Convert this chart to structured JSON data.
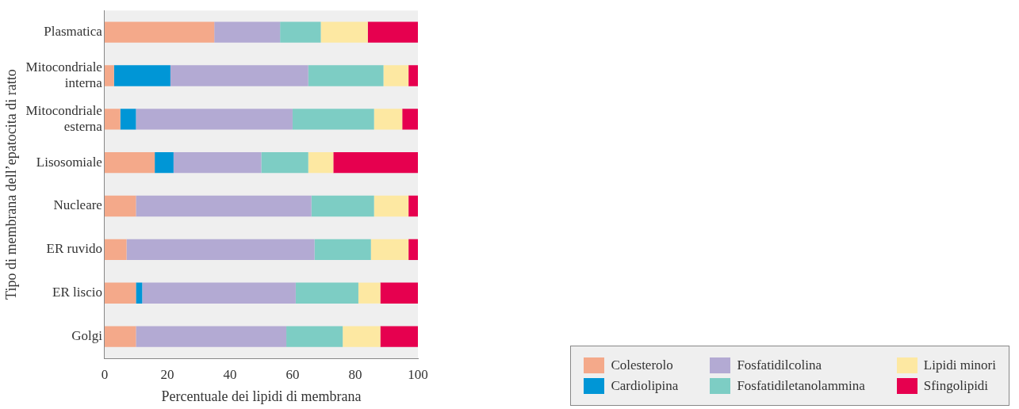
{
  "chart_data": {
    "type": "bar",
    "orientation": "horizontal",
    "stacked": true,
    "xlabel": "Percentuale dei lipidi di membrana",
    "ylabel": "Tipo di membrana dell’epatocita di ratto",
    "categories": [
      "Plasmatica",
      "Mitocondriale interna",
      "Mitocondriale esterna",
      "Lisosomiale",
      "Nucleare",
      "ER ruvido",
      "ER liscio",
      "Golgi"
    ],
    "xlim": [
      0,
      100
    ],
    "xticks": [
      0,
      20,
      40,
      60,
      80,
      100
    ],
    "grid": false,
    "legend": "bottom right",
    "series": [
      {
        "name": "Colesterolo",
        "color": "#f4a98a",
        "values": [
          35,
          3,
          5,
          16,
          10,
          7,
          10,
          10
        ]
      },
      {
        "name": "Cardiolipina",
        "color": "#0096d6",
        "values": [
          0,
          18,
          5,
          6,
          0,
          0,
          2,
          0
        ]
      },
      {
        "name": "Fosfatidilcolina",
        "color": "#b3aad3",
        "values": [
          21,
          44,
          50,
          28,
          56,
          60,
          49,
          48
        ]
      },
      {
        "name": "Fosfatidiletanolammina",
        "color": "#7dcdc4",
        "values": [
          13,
          24,
          26,
          15,
          20,
          18,
          20,
          18
        ]
      },
      {
        "name": "Lipidi minori",
        "color": "#fde8a2",
        "values": [
          15,
          8,
          9,
          8,
          11,
          12,
          7,
          12
        ]
      },
      {
        "name": "Sfingolipidi",
        "color": "#e6004f",
        "values": [
          16,
          3,
          5,
          27,
          3,
          3,
          12,
          12
        ]
      }
    ]
  }
}
